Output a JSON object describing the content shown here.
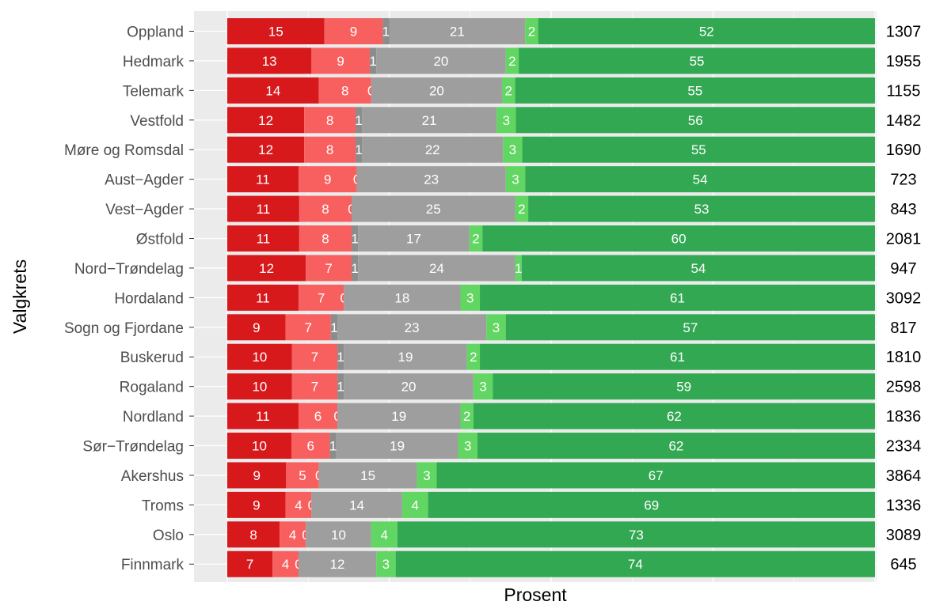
{
  "chart_data": {
    "type": "bar",
    "orientation": "horizontal",
    "stacked": true,
    "xlabel": "Prosent",
    "ylabel": "Valgkrets",
    "xlim": [
      0,
      100
    ],
    "grid": true,
    "legend": "none",
    "segment_colors": [
      "#d7191c",
      "#f8605f",
      "#8c8c8c",
      "#9e9e9e",
      "#62d662",
      "#33a853"
    ],
    "panel_background": "#ebebeb",
    "categories": [
      "Oppland",
      "Hedmark",
      "Telemark",
      "Vestfold",
      "Møre og Romsdal",
      "Aust−Agder",
      "Vest−Agder",
      "Østfold",
      "Nord−Trøndelag",
      "Hordaland",
      "Sogn og Fjordane",
      "Buskerud",
      "Rogaland",
      "Nordland",
      "Sør−Trøndelag",
      "Akershus",
      "Troms",
      "Oslo",
      "Finnmark"
    ],
    "series": [
      {
        "values": [
          15,
          13,
          14,
          12,
          12,
          11,
          11,
          11,
          12,
          11,
          9,
          10,
          10,
          11,
          10,
          9,
          9,
          8,
          7
        ]
      },
      {
        "values": [
          9,
          9,
          8,
          8,
          8,
          9,
          8,
          8,
          7,
          7,
          7,
          7,
          7,
          6,
          6,
          5,
          4,
          4,
          4
        ]
      },
      {
        "values": [
          1,
          1,
          0,
          1,
          1,
          0,
          0,
          1,
          1,
          0,
          1,
          1,
          1,
          0,
          1,
          0,
          0,
          0,
          0
        ]
      },
      {
        "values": [
          21,
          20,
          20,
          21,
          22,
          23,
          25,
          17,
          24,
          18,
          23,
          19,
          20,
          19,
          19,
          15,
          14,
          10,
          12
        ]
      },
      {
        "values": [
          2,
          2,
          2,
          3,
          3,
          3,
          2,
          2,
          1,
          3,
          3,
          2,
          3,
          2,
          3,
          3,
          4,
          4,
          3
        ]
      },
      {
        "values": [
          52,
          55,
          55,
          56,
          55,
          54,
          53,
          60,
          54,
          61,
          57,
          61,
          59,
          62,
          62,
          67,
          69,
          73,
          74
        ]
      }
    ],
    "n_values": [
      "1307",
      "1955",
      "1155",
      "1482",
      "1690",
      "723",
      "843",
      "2081",
      "947",
      "3092",
      "817",
      "1810",
      "2598",
      "1836",
      "2334",
      "3864",
      "1336",
      "3089",
      "645"
    ]
  }
}
